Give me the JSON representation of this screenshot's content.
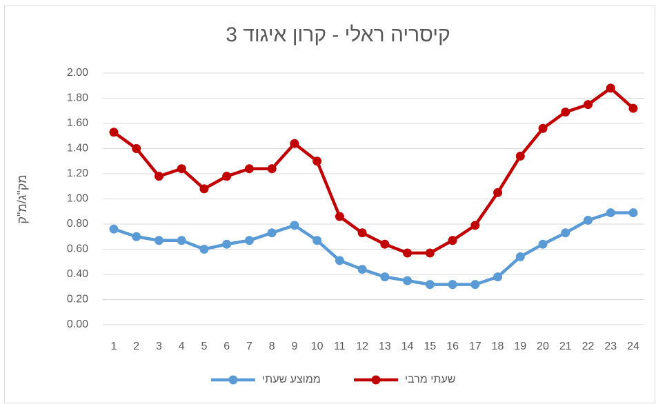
{
  "chart_data": {
    "type": "line",
    "title": "קיסריה ראלי - קרון איגוד 3",
    "y_label": "מק\"ג/מ\"ק",
    "categories": [
      "1",
      "2",
      "3",
      "4",
      "5",
      "6",
      "7",
      "8",
      "9",
      "10",
      "11",
      "12",
      "13",
      "14",
      "15",
      "16",
      "17",
      "18",
      "19",
      "20",
      "21",
      "22",
      "23",
      "24"
    ],
    "series": [
      {
        "name": "ממוצע שעתי",
        "color": "#5b9bd5",
        "values": [
          0.76,
          0.7,
          0.67,
          0.67,
          0.6,
          0.64,
          0.67,
          0.73,
          0.79,
          0.67,
          0.51,
          0.44,
          0.38,
          0.35,
          0.32,
          0.32,
          0.32,
          0.38,
          0.54,
          0.64,
          0.73,
          0.83,
          0.89,
          0.89
        ]
      },
      {
        "name": "שעתי מרבי",
        "color": "#c00000",
        "values": [
          1.53,
          1.4,
          1.18,
          1.24,
          1.08,
          1.18,
          1.24,
          1.24,
          1.44,
          1.3,
          0.86,
          0.73,
          0.64,
          0.57,
          0.57,
          0.67,
          0.79,
          1.05,
          1.34,
          1.56,
          1.69,
          1.75,
          1.88,
          1.72
        ]
      }
    ],
    "ylim": [
      0,
      2
    ],
    "yticks": [
      {
        "value": 0,
        "label": "0.00"
      },
      {
        "value": 0.2,
        "label": "0.20"
      },
      {
        "value": 0.4,
        "label": "0.40"
      },
      {
        "value": 0.6,
        "label": "0.60"
      },
      {
        "value": 0.8,
        "label": "0.80"
      },
      {
        "value": 1,
        "label": "1.00"
      },
      {
        "value": 1.2,
        "label": "1.20"
      },
      {
        "value": 1.4,
        "label": "1.40"
      },
      {
        "value": 1.6,
        "label": "1.60"
      },
      {
        "value": 1.8,
        "label": "1.80"
      },
      {
        "value": 2,
        "label": "2.00"
      }
    ],
    "grid": true,
    "legend": "bottom"
  }
}
